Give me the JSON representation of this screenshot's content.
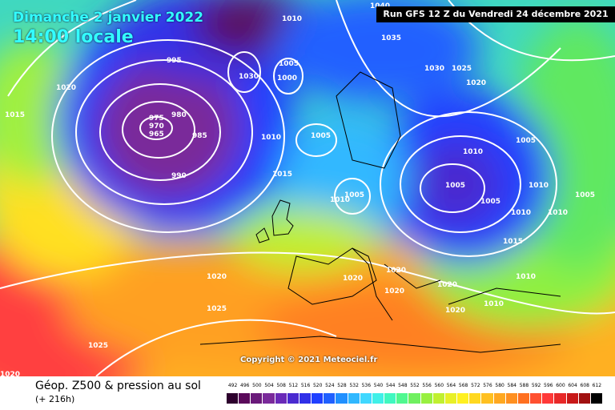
{
  "header": {
    "date": "Dimanche 2 janvier 2022",
    "time": "14:00 locale",
    "run_info": "Run GFS 12 Z du Vendredi 24 décembre 2021"
  },
  "copyright": "Copyright © 2021 Meteociel.fr",
  "footer": {
    "product": "Géop. Z500 & pression au sol",
    "forecast_hour": "(+ 216h)"
  },
  "legend": {
    "values": [
      "492",
      "496",
      "500",
      "504",
      "508",
      "512",
      "516",
      "520",
      "524",
      "528",
      "532",
      "536",
      "540",
      "544",
      "548",
      "552",
      "556",
      "560",
      "564",
      "568",
      "572",
      "576",
      "580",
      "584",
      "588",
      "592",
      "596",
      "600",
      "604",
      "608",
      "612"
    ],
    "colors": [
      "#2d002d",
      "#5a0a5a",
      "#6a1a7a",
      "#7a2a9a",
      "#6a2ab8",
      "#4a2ad0",
      "#3030e8",
      "#2040ff",
      "#2060ff",
      "#2090ff",
      "#30b8ff",
      "#40d8ff",
      "#40f0e8",
      "#40f8c0",
      "#50f890",
      "#70f060",
      "#98f040",
      "#c0f030",
      "#e8f028",
      "#fff020",
      "#ffd820",
      "#ffc020",
      "#ffa820",
      "#ff9020",
      "#ff7020",
      "#ff5030",
      "#ff3838",
      "#e82828",
      "#c81818",
      "#a01010",
      "#000000"
    ]
  },
  "pressure_labels": [
    "995",
    "975",
    "970",
    "965",
    "980",
    "985",
    "990",
    "1020",
    "1015",
    "1010",
    "1005",
    "1000",
    "1030",
    "1035",
    "1030",
    "1025",
    "1020",
    "1010",
    "1005",
    "1005",
    "1005",
    "1010",
    "1005",
    "1010",
    "1015",
    "1010",
    "1010",
    "1010",
    "1020",
    "1020",
    "1020",
    "1020",
    "1020",
    "1020",
    "1025",
    "1025",
    "1020",
    "1015",
    "1010",
    "1010",
    "1040",
    "1005",
    "1005"
  ]
}
